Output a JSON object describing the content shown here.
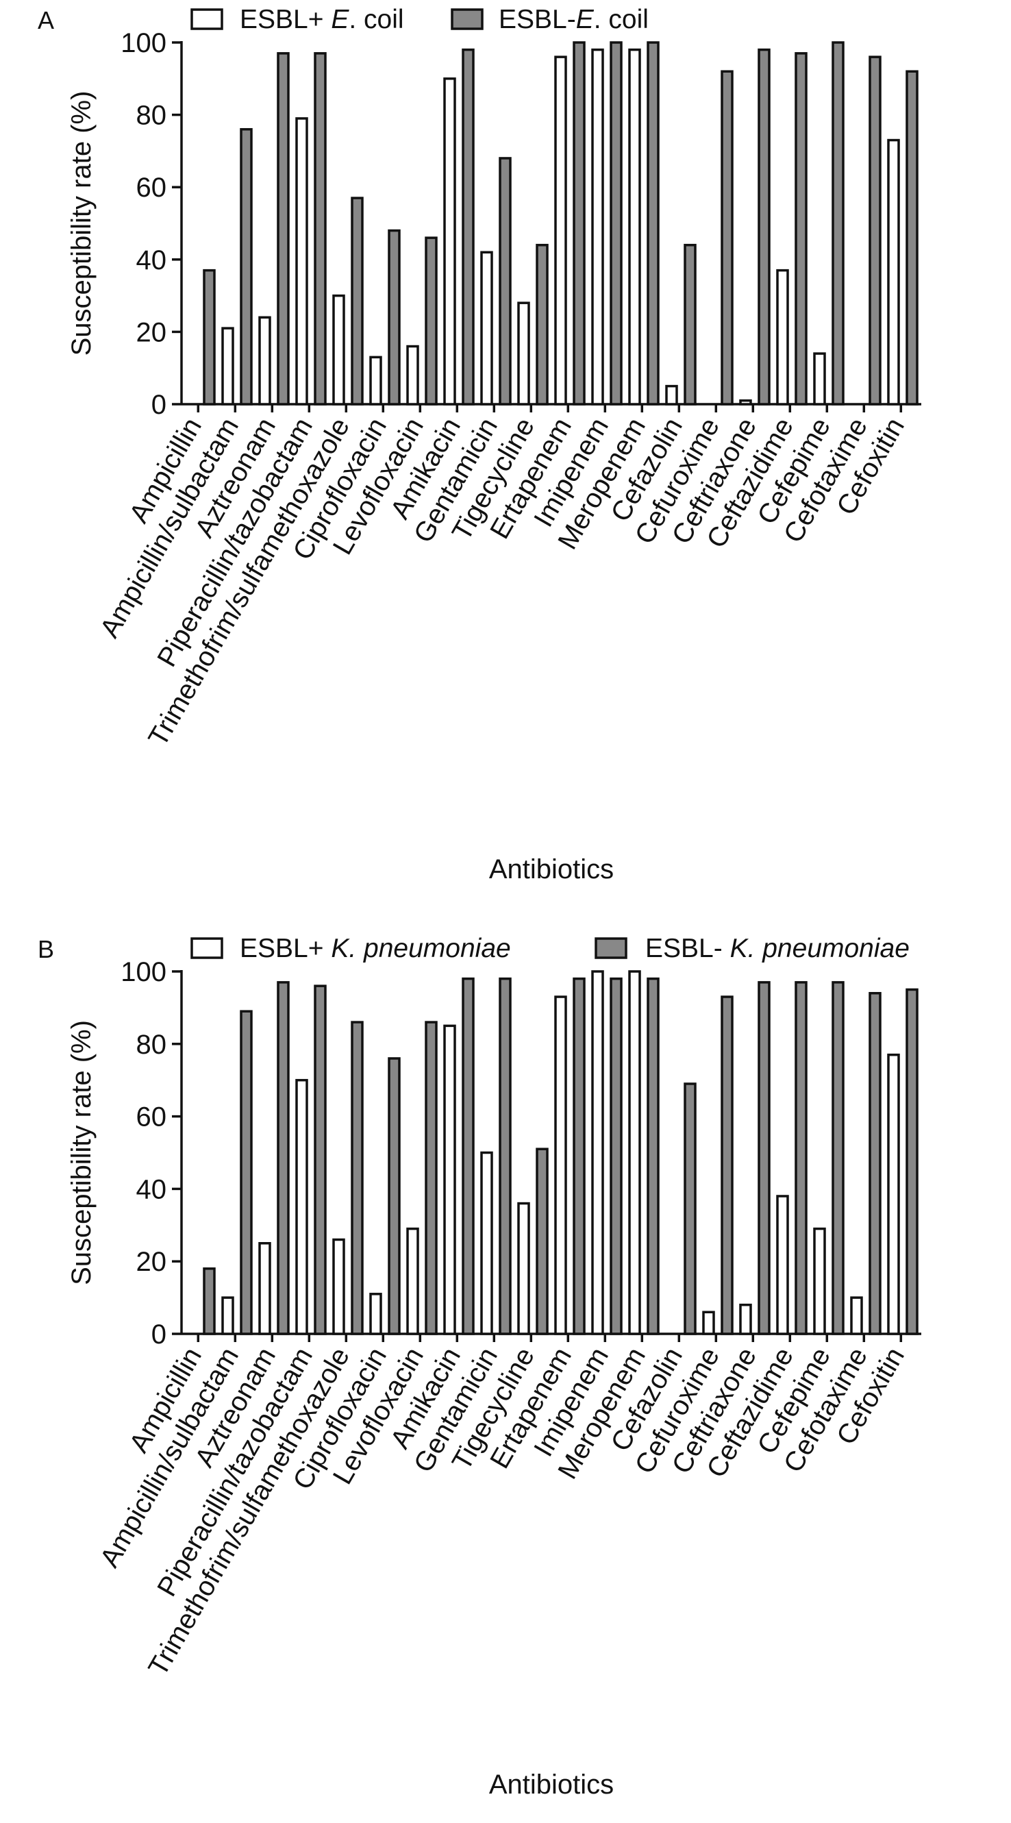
{
  "chart_data": [
    {
      "panel_label": "A",
      "type": "bar",
      "ylabel": "Susceptibility rate (%)",
      "xlabel": "Antibiotics",
      "ylim": [
        0,
        100
      ],
      "yticks": [
        0,
        20,
        40,
        60,
        80,
        100
      ],
      "grid": false,
      "legend_position": "top",
      "categories": [
        "Ampicillin",
        "Ampicillin/sulbactam",
        "Aztreonam",
        "Piperacillin/tazobactam",
        "Trimethofrim/sulfamethoxazole",
        "Ciprofloxacin",
        "Levofloxacin",
        "Amikacin",
        "Gentamicin",
        "Tigecycline",
        "Ertapenem",
        "Imipenem",
        "Meropenem",
        "Cefazolin",
        "Cefuroxime",
        "Ceftriaxone",
        "Ceftazidime",
        "Cefepime",
        "Cefotaxime",
        "Cefoxitin"
      ],
      "series": [
        {
          "name": "ESBL+ E. coil",
          "legend_prefix": "ESBL+ ",
          "legend_italic": "E",
          "legend_suffix": ". coil",
          "color": "#ffffff",
          "values": [
            0,
            21,
            24,
            79,
            30,
            13,
            16,
            90,
            42,
            28,
            96,
            98,
            98,
            5,
            0,
            1,
            37,
            14,
            0,
            73
          ]
        },
        {
          "name": "ESBL- E. coil",
          "legend_prefix": "ESBL-",
          "legend_italic": "E",
          "legend_suffix": ". coil",
          "color": "#888888",
          "values": [
            37,
            76,
            97,
            97,
            57,
            48,
            46,
            98,
            68,
            44,
            100,
            100,
            100,
            44,
            92,
            98,
            97,
            100,
            96,
            92
          ]
        }
      ]
    },
    {
      "panel_label": "B",
      "type": "bar",
      "ylabel": "Susceptibility rate (%)",
      "xlabel": "Antibiotics",
      "ylim": [
        0,
        100
      ],
      "yticks": [
        0,
        20,
        40,
        60,
        80,
        100
      ],
      "grid": false,
      "legend_position": "top",
      "categories": [
        "Ampicillin",
        "Ampicillin/sulbactam",
        "Aztreonam",
        "Piperacillin/tazobactam",
        "Trimethofrim/sulfamethoxazole",
        "Ciprofloxacin",
        "Levofloxacin",
        "Amikacin",
        "Gentamicin",
        "Tigecycline",
        "Ertapenem",
        "Imipenem",
        "Meropenem",
        "Cefazolin",
        "Cefuroxime",
        "Ceftriaxone",
        "Ceftazidime",
        "Cefepime",
        "Cefotaxime",
        "Cefoxitin"
      ],
      "series": [
        {
          "name": "ESBL+ K. pneumoniae",
          "legend_prefix": "ESBL+ ",
          "legend_italic": "K. pneumoniae",
          "legend_suffix": "",
          "color": "#ffffff",
          "values": [
            0,
            10,
            25,
            70,
            26,
            11,
            29,
            85,
            50,
            36,
            93,
            100,
            100,
            0,
            6,
            8,
            38,
            29,
            10,
            77
          ]
        },
        {
          "name": "ESBL- K. pneumoniae",
          "legend_prefix": "ESBL- ",
          "legend_italic": "K. pneumoniae",
          "legend_suffix": "",
          "color": "#888888",
          "values": [
            18,
            89,
            97,
            96,
            86,
            76,
            86,
            98,
            98,
            51,
            98,
            98,
            98,
            69,
            93,
            97,
            97,
            97,
            94,
            95
          ]
        }
      ]
    }
  ]
}
